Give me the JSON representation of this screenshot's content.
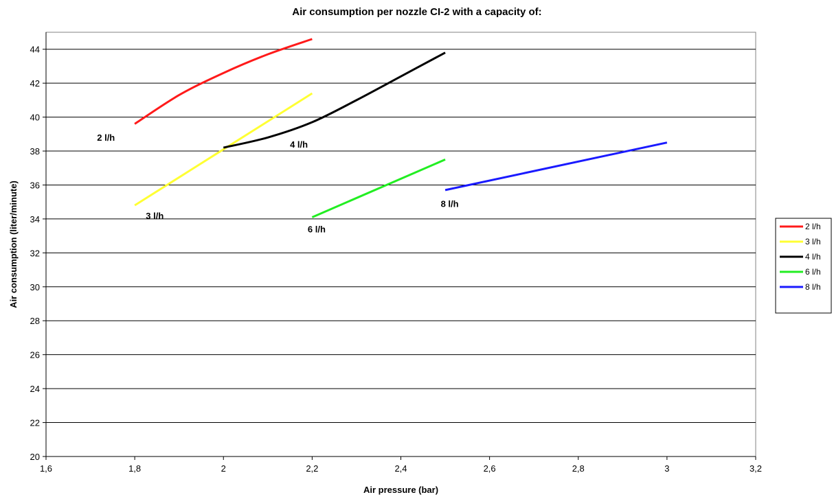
{
  "chart_data": {
    "type": "line",
    "title": "Air consumption per nozzle CI-2 with a capacity of:",
    "xlabel": "Air pressure (bar)",
    "ylabel": "Air consumption (liter/minute)",
    "xlim": [
      1.6,
      3.2
    ],
    "ylim": [
      20,
      45
    ],
    "x_ticks": [
      "1,6",
      "1,8",
      "2",
      "2,2",
      "2,4",
      "2,6",
      "2,8",
      "3",
      "3,2"
    ],
    "y_ticks": [
      "20",
      "22",
      "24",
      "26",
      "28",
      "30",
      "32",
      "34",
      "36",
      "38",
      "40",
      "42",
      "44"
    ],
    "grid": "horizontal",
    "legend_position": "right",
    "series": [
      {
        "name": "2 l/h",
        "color": "#ff1a1a",
        "label": "2 l/h",
        "x": [
          1.8,
          1.9,
          2.0,
          2.1,
          2.2
        ],
        "y": [
          39.6,
          41.3,
          42.6,
          43.7,
          44.6
        ]
      },
      {
        "name": "3 l/h",
        "color": "#ffff33",
        "label": "3 l/h",
        "x": [
          1.8,
          2.0,
          2.2
        ],
        "y": [
          34.8,
          38.1,
          41.4
        ]
      },
      {
        "name": "4 l/h",
        "color": "#000000",
        "label": "4 l/h",
        "x": [
          2.0,
          2.1,
          2.2,
          2.3,
          2.4,
          2.5
        ],
        "y": [
          38.2,
          38.8,
          39.7,
          41.0,
          42.4,
          43.8
        ]
      },
      {
        "name": "6 l/h",
        "color": "#22ee22",
        "label": "6 l/h",
        "x": [
          2.2,
          2.5
        ],
        "y": [
          34.1,
          37.5
        ]
      },
      {
        "name": "8 l/h",
        "color": "#1a1aff",
        "label": "8 l/h",
        "x": [
          2.5,
          3.0
        ],
        "y": [
          35.7,
          38.5
        ]
      }
    ]
  }
}
